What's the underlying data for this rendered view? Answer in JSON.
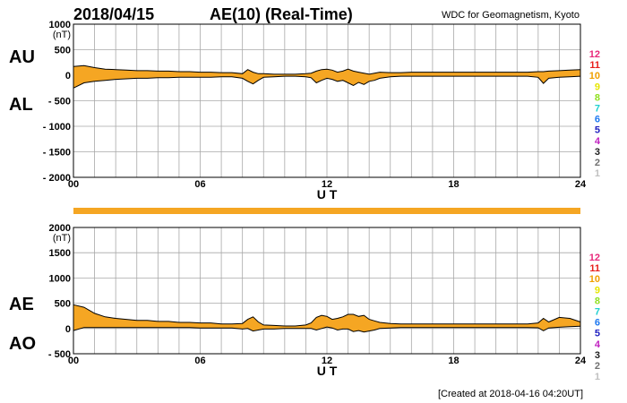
{
  "header": {
    "date": "2018/04/15",
    "title": "AE(10) (Real-Time)",
    "source": "WDC for Geomagnetism, Kyoto"
  },
  "footer": {
    "created": "[Created at 2018-04-16 04:20UT]"
  },
  "colors": {
    "fill": "#f5a623",
    "line": "#000000",
    "grid": "#a8a8a8"
  },
  "station_counts": [
    {
      "label": "12",
      "color": "#e8287a"
    },
    {
      "label": "11",
      "color": "#e8201c"
    },
    {
      "label": "10",
      "color": "#f0a000"
    },
    {
      "label": "9",
      "color": "#e6e600"
    },
    {
      "label": "8",
      "color": "#90e020"
    },
    {
      "label": "7",
      "color": "#20d0d0"
    },
    {
      "label": "6",
      "color": "#1e78f0"
    },
    {
      "label": "5",
      "color": "#2020c0"
    },
    {
      "label": "4",
      "color": "#c020c0"
    },
    {
      "label": "3",
      "color": "#202020"
    },
    {
      "label": "2",
      "color": "#707070"
    },
    {
      "label": "1",
      "color": "#c0c0c0"
    }
  ],
  "chart_data": [
    {
      "type": "area",
      "title": "AU / AL",
      "upper_label": "AU",
      "lower_label": "AL",
      "unit": "(nT)",
      "xlabel": "U T",
      "ylim": [
        -2000,
        1000
      ],
      "yticks": [
        {
          "value": 1000,
          "label": "1000"
        },
        {
          "value": 500,
          "label": "500"
        },
        {
          "value": 0,
          "label": "0"
        },
        {
          "value": -500,
          "label": "- 500"
        },
        {
          "value": -1000,
          "label": "- 1000"
        },
        {
          "value": -1500,
          "label": "- 1500"
        },
        {
          "value": -2000,
          "label": "- 2000"
        }
      ],
      "xticks": [
        {
          "value": 0,
          "label": "00"
        },
        {
          "value": 6,
          "label": "06"
        },
        {
          "value": 12,
          "label": "12"
        },
        {
          "value": 18,
          "label": "18"
        },
        {
          "value": 24,
          "label": "24"
        }
      ],
      "x": [
        0,
        0.5,
        1,
        1.5,
        2,
        2.5,
        3,
        3.5,
        4,
        4.5,
        5,
        5.5,
        6,
        6.5,
        7,
        7.5,
        8,
        8.25,
        8.5,
        8.75,
        9,
        9.5,
        10,
        10.5,
        11,
        11.25,
        11.5,
        11.75,
        12,
        12.25,
        12.5,
        12.75,
        13,
        13.25,
        13.5,
        13.75,
        14,
        14.25,
        14.5,
        15,
        15.5,
        16,
        16.5,
        17,
        17.5,
        18,
        18.5,
        19,
        19.5,
        20,
        20.5,
        21,
        21.5,
        22,
        22.25,
        22.5,
        23,
        23.5,
        24
      ],
      "series": [
        {
          "name": "AU",
          "values": [
            170,
            190,
            150,
            120,
            110,
            100,
            90,
            90,
            80,
            80,
            70,
            70,
            60,
            60,
            50,
            50,
            30,
            110,
            60,
            30,
            30,
            20,
            20,
            20,
            30,
            40,
            80,
            110,
            120,
            100,
            60,
            80,
            120,
            80,
            60,
            40,
            20,
            40,
            60,
            50,
            50,
            60,
            60,
            60,
            60,
            60,
            60,
            60,
            60,
            60,
            60,
            60,
            60,
            70,
            70,
            80,
            90,
            100,
            110
          ]
        },
        {
          "name": "AL",
          "values": [
            -250,
            -150,
            -120,
            -100,
            -80,
            -70,
            -60,
            -60,
            -50,
            -50,
            -40,
            -40,
            -40,
            -40,
            -30,
            -30,
            -60,
            -120,
            -170,
            -100,
            -40,
            -30,
            -20,
            -20,
            -30,
            -50,
            -150,
            -100,
            -60,
            -80,
            -120,
            -100,
            -150,
            -200,
            -140,
            -180,
            -120,
            -100,
            -60,
            -30,
            -20,
            -20,
            -20,
            -20,
            -20,
            -20,
            -20,
            -20,
            -20,
            -20,
            -20,
            -20,
            -20,
            -40,
            -160,
            -60,
            -40,
            -30,
            -20
          ]
        }
      ]
    },
    {
      "type": "area",
      "title": "AE / AO",
      "upper_label": "AE",
      "lower_label": "AO",
      "unit": "(nT)",
      "xlabel": "U T",
      "ylim": [
        -500,
        2000
      ],
      "yticks": [
        {
          "value": 2000,
          "label": "2000"
        },
        {
          "value": 1500,
          "label": "1500"
        },
        {
          "value": 1000,
          "label": "1000"
        },
        {
          "value": 500,
          "label": "500"
        },
        {
          "value": 0,
          "label": "0"
        },
        {
          "value": -500,
          "label": "- 500"
        }
      ],
      "xticks": [
        {
          "value": 0,
          "label": "00"
        },
        {
          "value": 6,
          "label": "06"
        },
        {
          "value": 12,
          "label": "12"
        },
        {
          "value": 18,
          "label": "18"
        },
        {
          "value": 24,
          "label": "24"
        }
      ],
      "x": [
        0,
        0.5,
        1,
        1.5,
        2,
        2.5,
        3,
        3.5,
        4,
        4.5,
        5,
        5.5,
        6,
        6.5,
        7,
        7.5,
        8,
        8.25,
        8.5,
        8.75,
        9,
        9.5,
        10,
        10.5,
        11,
        11.25,
        11.5,
        11.75,
        12,
        12.25,
        12.5,
        12.75,
        13,
        13.25,
        13.5,
        13.75,
        14,
        14.25,
        14.5,
        15,
        15.5,
        16,
        16.5,
        17,
        17.5,
        18,
        18.5,
        19,
        19.5,
        20,
        20.5,
        21,
        21.5,
        22,
        22.25,
        22.5,
        23,
        23.5,
        24
      ],
      "series": [
        {
          "name": "AE",
          "values": [
            470,
            420,
            300,
            230,
            200,
            180,
            160,
            160,
            140,
            140,
            120,
            120,
            110,
            110,
            90,
            90,
            100,
            180,
            230,
            130,
            70,
            60,
            50,
            50,
            70,
            110,
            220,
            260,
            240,
            180,
            200,
            230,
            280,
            280,
            240,
            260,
            180,
            150,
            120,
            100,
            90,
            90,
            90,
            90,
            90,
            90,
            90,
            90,
            90,
            90,
            90,
            90,
            90,
            110,
            200,
            130,
            220,
            200,
            130
          ]
        },
        {
          "name": "AO",
          "values": [
            -40,
            20,
            20,
            20,
            20,
            20,
            20,
            20,
            20,
            20,
            20,
            20,
            10,
            10,
            10,
            10,
            -10,
            0,
            -50,
            -30,
            -10,
            -10,
            0,
            0,
            0,
            0,
            -30,
            0,
            30,
            10,
            -30,
            -10,
            -10,
            -60,
            -40,
            -70,
            -50,
            -30,
            0,
            10,
            20,
            20,
            20,
            20,
            20,
            20,
            20,
            20,
            20,
            20,
            20,
            20,
            20,
            15,
            -45,
            10,
            25,
            35,
            45
          ]
        }
      ]
    }
  ]
}
